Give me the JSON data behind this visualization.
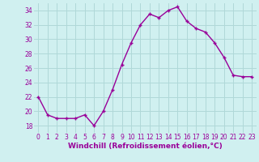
{
  "x": [
    0,
    1,
    2,
    3,
    4,
    5,
    6,
    7,
    8,
    9,
    10,
    11,
    12,
    13,
    14,
    15,
    16,
    17,
    18,
    19,
    20,
    21,
    22,
    23
  ],
  "y": [
    22,
    19.5,
    19,
    19,
    19,
    19.5,
    18,
    20,
    23,
    26.5,
    29.5,
    32,
    33.5,
    33,
    34,
    34.5,
    32.5,
    31.5,
    31,
    29.5,
    27.5,
    25,
    24.8,
    24.8
  ],
  "line_color": "#990099",
  "marker": "+",
  "bg_color": "#d0f0f0",
  "grid_color": "#b0d8d8",
  "xlabel": "Windchill (Refroidissement éolien,°C)",
  "xlabel_color": "#990099",
  "tick_color": "#990099",
  "ylim": [
    17,
    35
  ],
  "xlim": [
    -0.5,
    23.5
  ],
  "yticks": [
    18,
    20,
    22,
    24,
    26,
    28,
    30,
    32,
    34
  ],
  "xticks": [
    0,
    1,
    2,
    3,
    4,
    5,
    6,
    7,
    8,
    9,
    10,
    11,
    12,
    13,
    14,
    15,
    16,
    17,
    18,
    19,
    20,
    21,
    22,
    23
  ],
  "tick_fontsize": 5.5,
  "xlabel_fontsize": 6.5,
  "marker_size": 3,
  "line_width": 1.0
}
